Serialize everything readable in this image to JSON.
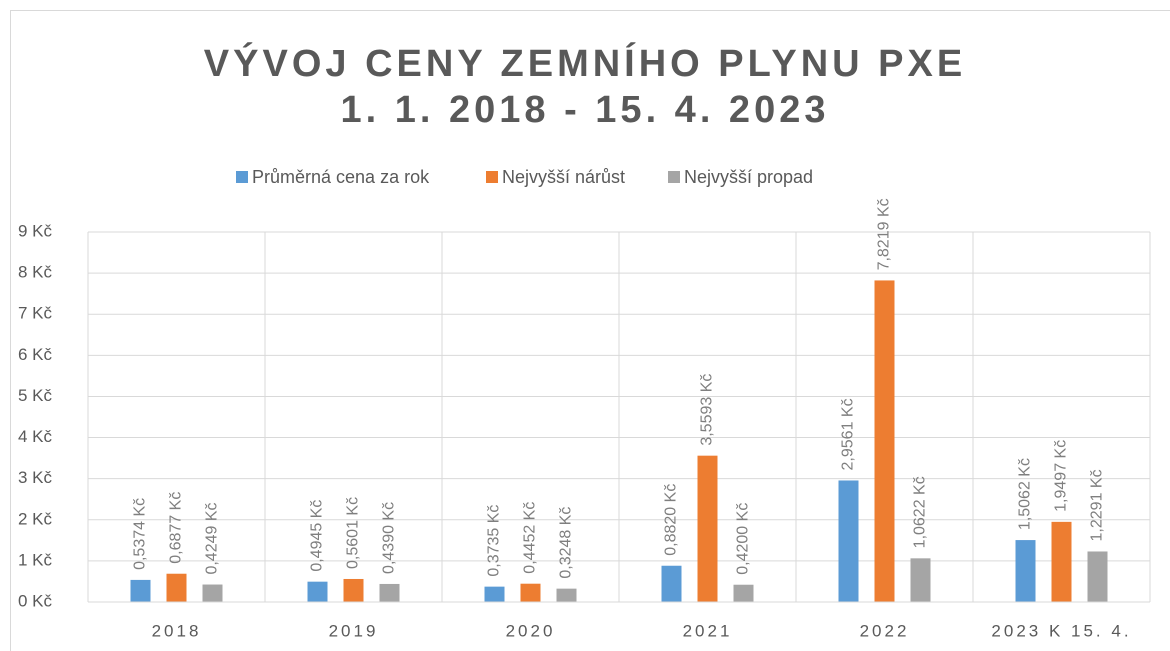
{
  "chart_data": {
    "type": "bar",
    "title": "VÝVOJ CENY ZEMNÍHO PLYNU PXE",
    "subtitle": "1. 1. 2018 - 15. 4. 2023",
    "categories": [
      "2018",
      "2019",
      "2020",
      "2021",
      "2022",
      "2023 K 15. 4."
    ],
    "series": [
      {
        "name": "Průměrná cena za rok",
        "color": "#5b9bd5",
        "values": [
          0.5374,
          0.4945,
          0.3735,
          0.882,
          2.9561,
          1.5062
        ],
        "value_labels": [
          "0,5374 Kč",
          "0,4945 Kč",
          "0,3735 Kč",
          "0,8820 Kč",
          "2,9561 Kč",
          "1,5062 Kč"
        ]
      },
      {
        "name": "Nejvyšší nárůst",
        "color": "#ed7d31",
        "values": [
          0.6877,
          0.5601,
          0.4452,
          3.5593,
          7.8219,
          1.9497
        ],
        "value_labels": [
          "0,6877 Kč",
          "0,5601 Kč",
          "0,4452 Kč",
          "3,5593 Kč",
          "7,8219 Kč",
          "1,9497 Kč"
        ]
      },
      {
        "name": "Nejvyšší propad",
        "color": "#a5a5a5",
        "values": [
          0.4249,
          0.439,
          0.3248,
          0.42,
          1.0622,
          1.2291
        ],
        "value_labels": [
          "0,4249 Kč",
          "0,4390 Kč",
          "0,3248 Kč",
          "0,4200 Kč",
          "1,0622 Kč",
          "1,2291 Kč"
        ]
      }
    ],
    "ylim": [
      0,
      9
    ],
    "yticks": [
      {
        "value": 0,
        "label": "0 Kč"
      },
      {
        "value": 1,
        "label": "1 Kč"
      },
      {
        "value": 2,
        "label": "2 Kč"
      },
      {
        "value": 3,
        "label": "3 Kč"
      },
      {
        "value": 4,
        "label": "4 Kč"
      },
      {
        "value": 5,
        "label": "5 Kč"
      },
      {
        "value": 6,
        "label": "6 Kč"
      },
      {
        "value": 7,
        "label": "7 Kč"
      },
      {
        "value": 8,
        "label": "8 Kč"
      },
      {
        "value": 9,
        "label": "9 Kč"
      }
    ],
    "grid": true,
    "legend": "top"
  }
}
